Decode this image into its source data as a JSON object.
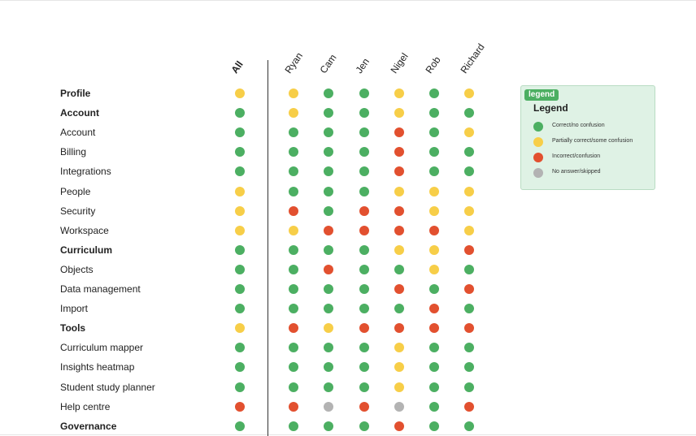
{
  "colors": {
    "green": "#4caf62",
    "yellow": "#f7ce48",
    "red": "#e2502f",
    "grey": "#b3b3b3"
  },
  "columns": [
    "All",
    "Ryan",
    "Cam",
    "Jen",
    "Nigel",
    "Rob",
    "Richard"
  ],
  "rows": [
    {
      "label": "Profile",
      "bold": true,
      "values": [
        "Y",
        "Y",
        "G",
        "G",
        "Y",
        "G",
        "Y"
      ]
    },
    {
      "label": "Account",
      "bold": true,
      "values": [
        "G",
        "Y",
        "G",
        "G",
        "Y",
        "G",
        "G"
      ]
    },
    {
      "label": "Account",
      "bold": false,
      "values": [
        "G",
        "G",
        "G",
        "G",
        "R",
        "G",
        "Y"
      ]
    },
    {
      "label": "Billing",
      "bold": false,
      "values": [
        "G",
        "G",
        "G",
        "G",
        "R",
        "G",
        "G"
      ]
    },
    {
      "label": "Integrations",
      "bold": false,
      "values": [
        "G",
        "G",
        "G",
        "G",
        "R",
        "G",
        "G"
      ]
    },
    {
      "label": "People",
      "bold": false,
      "values": [
        "Y",
        "G",
        "G",
        "G",
        "Y",
        "Y",
        "Y"
      ]
    },
    {
      "label": "Security",
      "bold": false,
      "values": [
        "Y",
        "R",
        "G",
        "R",
        "R",
        "Y",
        "Y"
      ]
    },
    {
      "label": "Workspace",
      "bold": false,
      "values": [
        "Y",
        "Y",
        "R",
        "R",
        "R",
        "R",
        "Y"
      ]
    },
    {
      "label": "Curriculum",
      "bold": true,
      "values": [
        "G",
        "G",
        "G",
        "G",
        "Y",
        "Y",
        "R"
      ]
    },
    {
      "label": "Objects",
      "bold": false,
      "values": [
        "G",
        "G",
        "R",
        "G",
        "G",
        "Y",
        "G"
      ]
    },
    {
      "label": "Data management",
      "bold": false,
      "values": [
        "G",
        "G",
        "G",
        "G",
        "R",
        "G",
        "R"
      ]
    },
    {
      "label": "Import",
      "bold": false,
      "values": [
        "G",
        "G",
        "G",
        "G",
        "G",
        "R",
        "G"
      ]
    },
    {
      "label": "Tools",
      "bold": true,
      "values": [
        "Y",
        "R",
        "Y",
        "R",
        "R",
        "R",
        "R"
      ]
    },
    {
      "label": "Curriculum mapper",
      "bold": false,
      "values": [
        "G",
        "G",
        "G",
        "G",
        "Y",
        "G",
        "G"
      ]
    },
    {
      "label": "Insights heatmap",
      "bold": false,
      "values": [
        "G",
        "G",
        "G",
        "G",
        "Y",
        "G",
        "G"
      ]
    },
    {
      "label": "Student study planner",
      "bold": false,
      "values": [
        "G",
        "G",
        "G",
        "G",
        "Y",
        "G",
        "G"
      ]
    },
    {
      "label": "Help centre",
      "bold": false,
      "values": [
        "R",
        "R",
        "X",
        "R",
        "X",
        "G",
        "R"
      ]
    },
    {
      "label": "Governance",
      "bold": true,
      "values": [
        "G",
        "G",
        "G",
        "G",
        "R",
        "G",
        "G"
      ]
    }
  ],
  "legend": {
    "tag": "legend",
    "title": "Legend",
    "items": [
      {
        "key": "G",
        "label": "Correct/no confusion"
      },
      {
        "key": "Y",
        "label": "Partially correct/some confusion"
      },
      {
        "key": "R",
        "label": "Incorrect/confusion"
      },
      {
        "key": "X",
        "label": "No answer/skipped"
      }
    ]
  }
}
